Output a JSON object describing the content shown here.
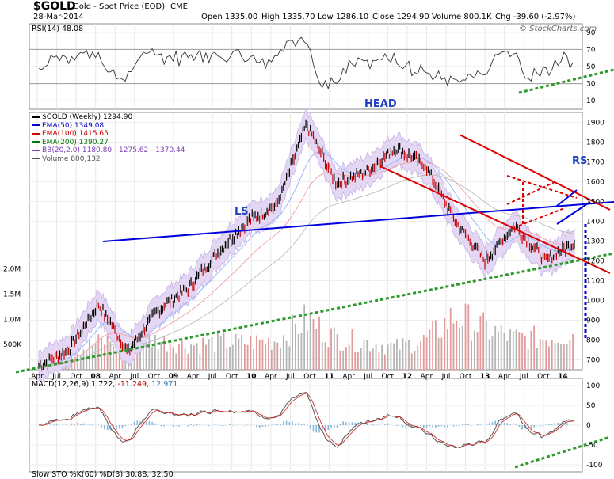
{
  "header": {
    "symbol": "$GOLD",
    "name": "Gold - Spot Price (EOD)",
    "exchange": "CME",
    "date": "28-Mar-2014",
    "open": "Open 1335.00",
    "high": "High 1335.70",
    "low": "Low 1286.10",
    "close": "Close 1294.90",
    "volume": "Volume 800.1K",
    "change": "Chg -39.60 (-2.97%)",
    "watermark": "© StockCharts.com"
  },
  "rsi": {
    "label": "RSI(14) 48.08",
    "ticks": [
      "90",
      "70",
      "50",
      "30",
      "10"
    ],
    "tick_values": [
      90,
      70,
      50,
      30,
      10
    ],
    "ylim": [
      0,
      100
    ]
  },
  "price": {
    "legend": [
      {
        "text": "$GOLD (Weekly) 1294.90",
        "color": "#000000"
      },
      {
        "text": "EMA(50) 1349.08",
        "color": "#0000cc"
      },
      {
        "text": "EMA(100) 1415.65",
        "color": "#cc0000"
      },
      {
        "text": "EMA(200) 1390.27",
        "color": "#007700"
      },
      {
        "text": "BB(20,2.0) 1180.80 - 1275.62 - 1370.44",
        "color": "#7b3fb8"
      },
      {
        "text": "Volume 800,132",
        "color": "#555555"
      }
    ],
    "right_ticks": [
      "1900",
      "1800",
      "1700",
      "1600",
      "1500",
      "1400",
      "1300",
      "1200",
      "1100",
      "1000",
      "900",
      "800",
      "700"
    ],
    "right_tick_values": [
      1900,
      1800,
      1700,
      1600,
      1500,
      1400,
      1300,
      1200,
      1100,
      1000,
      900,
      800,
      700
    ],
    "volume_ticks": [
      "2.0M",
      "1.5M",
      "1.0M",
      "500K"
    ],
    "volume_tick_values": [
      2000000,
      1500000,
      1000000,
      500000
    ],
    "annotations": {
      "head": "HEAD",
      "ls": "LS",
      "rs": "RS"
    }
  },
  "x_axis": {
    "labels": [
      "Apr",
      "Jul",
      "Oct",
      "08",
      "Apr",
      "Jul",
      "Oct",
      "09",
      "Apr",
      "Jul",
      "Oct",
      "10",
      "Apr",
      "Jul",
      "Oct",
      "11",
      "Apr",
      "Jul",
      "Oct",
      "12",
      "Apr",
      "Jul",
      "Oct",
      "13",
      "Apr",
      "Jul",
      "Oct",
      "14"
    ],
    "bold": [
      "08",
      "09",
      "10",
      "11",
      "12",
      "13",
      "14"
    ]
  },
  "macd": {
    "label_main": "MACD(12,26,9) 1.722,",
    "label_signal": "-11.249,",
    "label_hist": "12.971",
    "ticks": [
      "100",
      "50",
      "0",
      "-50",
      "-100"
    ],
    "tick_values": [
      100,
      50,
      0,
      -50,
      -100
    ]
  },
  "sto": {
    "label": "Slow STO %K(60) %D(3) 30.88, 32.50"
  },
  "chart_data": {
    "type": "line",
    "title": "$GOLD Gold - Spot Price (EOD) CME",
    "period": "Weekly",
    "x_range": [
      "2007-04",
      "2014-03"
    ],
    "y_range": [
      650,
      1950
    ],
    "x": [
      "2007-04",
      "2007-10",
      "2008-03",
      "2008-10",
      "2009-02",
      "2009-10",
      "2010-06",
      "2010-12",
      "2011-04",
      "2011-09",
      "2011-12",
      "2012-04",
      "2012-10",
      "2013-01",
      "2013-04",
      "2013-06",
      "2013-09",
      "2013-12",
      "2014-03"
    ],
    "series": [
      {
        "name": "$GOLD (Weekly)",
        "values": [
          670,
          750,
          980,
          740,
          950,
          1060,
          1240,
          1400,
          1480,
          1890,
          1590,
          1650,
          1770,
          1680,
          1400,
          1200,
          1380,
          1200,
          1295
        ]
      }
    ],
    "volume_values": [
      300000,
      350000,
      600000,
      700000,
      650000,
      550000,
      600000,
      600000,
      650000,
      1100000,
      700000,
      600000,
      500000,
      650000,
      1200000,
      900000,
      700000,
      700000,
      800132
    ]
  }
}
